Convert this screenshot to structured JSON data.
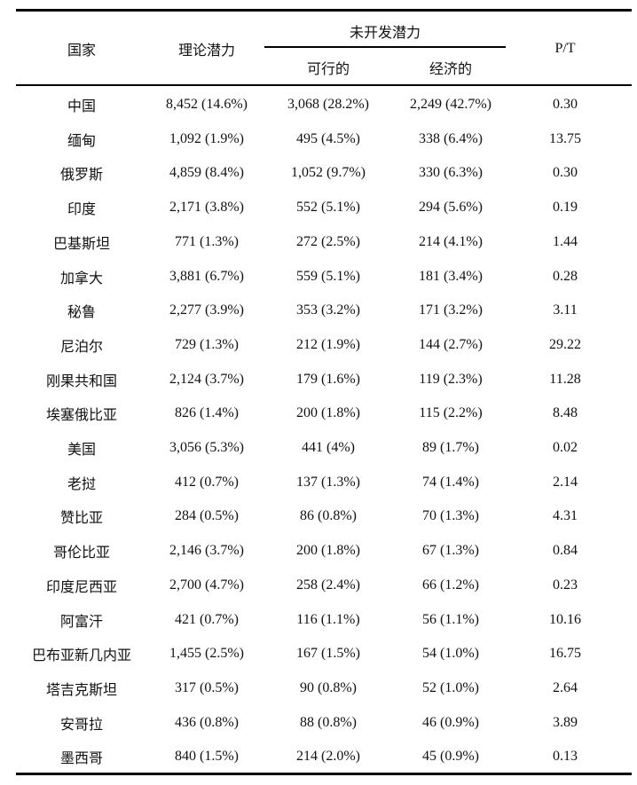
{
  "table": {
    "headers": {
      "country": "国家",
      "theoretical": "理论潜力",
      "undeveloped": "未开发潜力",
      "feasible": "可行的",
      "economic": "经济的",
      "pt": "P/T"
    },
    "rows": [
      {
        "country": "中国",
        "theoretical": "8,452 (14.6%)",
        "feasible": "3,068 (28.2%)",
        "economic": "2,249 (42.7%)",
        "pt": "0.30"
      },
      {
        "country": "缅甸",
        "theoretical": "1,092 (1.9%)",
        "feasible": "495 (4.5%)",
        "economic": "338 (6.4%)",
        "pt": "13.75"
      },
      {
        "country": "俄罗斯",
        "theoretical": "4,859 (8.4%)",
        "feasible": "1,052 (9.7%)",
        "economic": "330 (6.3%)",
        "pt": "0.30"
      },
      {
        "country": "印度",
        "theoretical": "2,171 (3.8%)",
        "feasible": "552 (5.1%)",
        "economic": "294 (5.6%)",
        "pt": "0.19"
      },
      {
        "country": "巴基斯坦",
        "theoretical": "771 (1.3%)",
        "feasible": "272 (2.5%)",
        "economic": "214 (4.1%)",
        "pt": "1.44"
      },
      {
        "country": "加拿大",
        "theoretical": "3,881 (6.7%)",
        "feasible": "559 (5.1%)",
        "economic": "181 (3.4%)",
        "pt": "0.28"
      },
      {
        "country": "秘鲁",
        "theoretical": "2,277 (3.9%)",
        "feasible": "353 (3.2%)",
        "economic": "171 (3.2%)",
        "pt": "3.11"
      },
      {
        "country": "尼泊尔",
        "theoretical": "729 (1.3%)",
        "feasible": "212 (1.9%)",
        "economic": "144 (2.7%)",
        "pt": "29.22"
      },
      {
        "country": "刚果共和国",
        "theoretical": "2,124 (3.7%)",
        "feasible": "179 (1.6%)",
        "economic": "119 (2.3%)",
        "pt": "11.28"
      },
      {
        "country": "埃塞俄比亚",
        "theoretical": "826 (1.4%)",
        "feasible": "200 (1.8%)",
        "economic": "115 (2.2%)",
        "pt": "8.48"
      },
      {
        "country": "美国",
        "theoretical": "3,056 (5.3%)",
        "feasible": "441 (4%)",
        "economic": "89 (1.7%)",
        "pt": "0.02"
      },
      {
        "country": "老挝",
        "theoretical": "412 (0.7%)",
        "feasible": "137 (1.3%)",
        "economic": "74 (1.4%)",
        "pt": "2.14"
      },
      {
        "country": "赞比亚",
        "theoretical": "284 (0.5%)",
        "feasible": "86 (0.8%)",
        "economic": "70 (1.3%)",
        "pt": "4.31"
      },
      {
        "country": "哥伦比亚",
        "theoretical": "2,146 (3.7%)",
        "feasible": "200 (1.8%)",
        "economic": "67 (1.3%)",
        "pt": "0.84"
      },
      {
        "country": "印度尼西亚",
        "theoretical": "2,700 (4.7%)",
        "feasible": "258 (2.4%)",
        "economic": "66 (1.2%)",
        "pt": "0.23"
      },
      {
        "country": "阿富汗",
        "theoretical": "421 (0.7%)",
        "feasible": "116 (1.1%)",
        "economic": "56 (1.1%)",
        "pt": "10.16"
      },
      {
        "country": "巴布亚新几内亚",
        "theoretical": "1,455 (2.5%)",
        "feasible": "167 (1.5%)",
        "economic": "54 (1.0%)",
        "pt": "16.75"
      },
      {
        "country": "塔吉克斯坦",
        "theoretical": "317 (0.5%)",
        "feasible": "90 (0.8%)",
        "economic": "52 (1.0%)",
        "pt": "2.64"
      },
      {
        "country": "安哥拉",
        "theoretical": "436 (0.8%)",
        "feasible": "88 (0.8%)",
        "economic": "46 (0.9%)",
        "pt": "3.89"
      },
      {
        "country": "墨西哥",
        "theoretical": "840 (1.5%)",
        "feasible": "214 (2.0%)",
        "economic": "45 (0.9%)",
        "pt": "0.13"
      }
    ]
  }
}
